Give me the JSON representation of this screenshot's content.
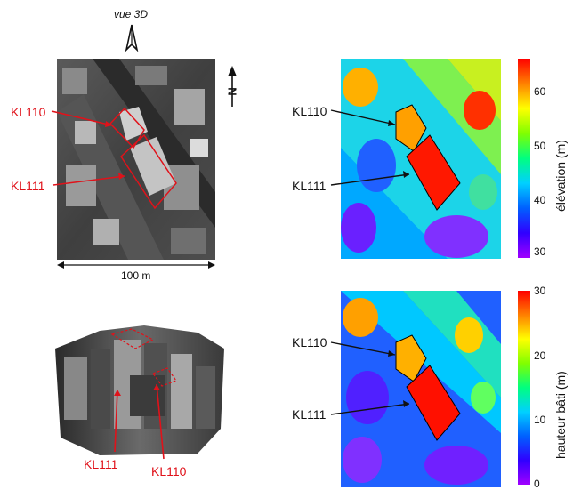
{
  "view3d": {
    "label": "vue 3D"
  },
  "north": {
    "label": "N"
  },
  "aerial": {
    "label_kl110": "KL110",
    "label_kl111": "KL111",
    "scale_label": "100 m"
  },
  "model3d": {
    "label_kl111": "KL111",
    "label_kl110": "KL110"
  },
  "elevation_map": {
    "label_kl110": "KL110",
    "label_kl111": "KL111",
    "colorbar": {
      "title": "élévation (m)",
      "ticks": [
        "60",
        "50",
        "40",
        "30"
      ],
      "min": 27,
      "max": 67
    }
  },
  "height_map": {
    "label_kl110": "KL110",
    "label_kl111": "KL111",
    "colorbar": {
      "title": "hauteur bâti (m)",
      "ticks": [
        "30",
        "20",
        "10",
        "0"
      ],
      "min": 0,
      "max": 30
    }
  },
  "colors": {
    "annotation_red": "#e0121a",
    "colormap": [
      "#ff0000",
      "#ff8000",
      "#ffff00",
      "#80ff00",
      "#00ff80",
      "#00d0ff",
      "#0060ff",
      "#3000ff",
      "#a000ff"
    ]
  }
}
